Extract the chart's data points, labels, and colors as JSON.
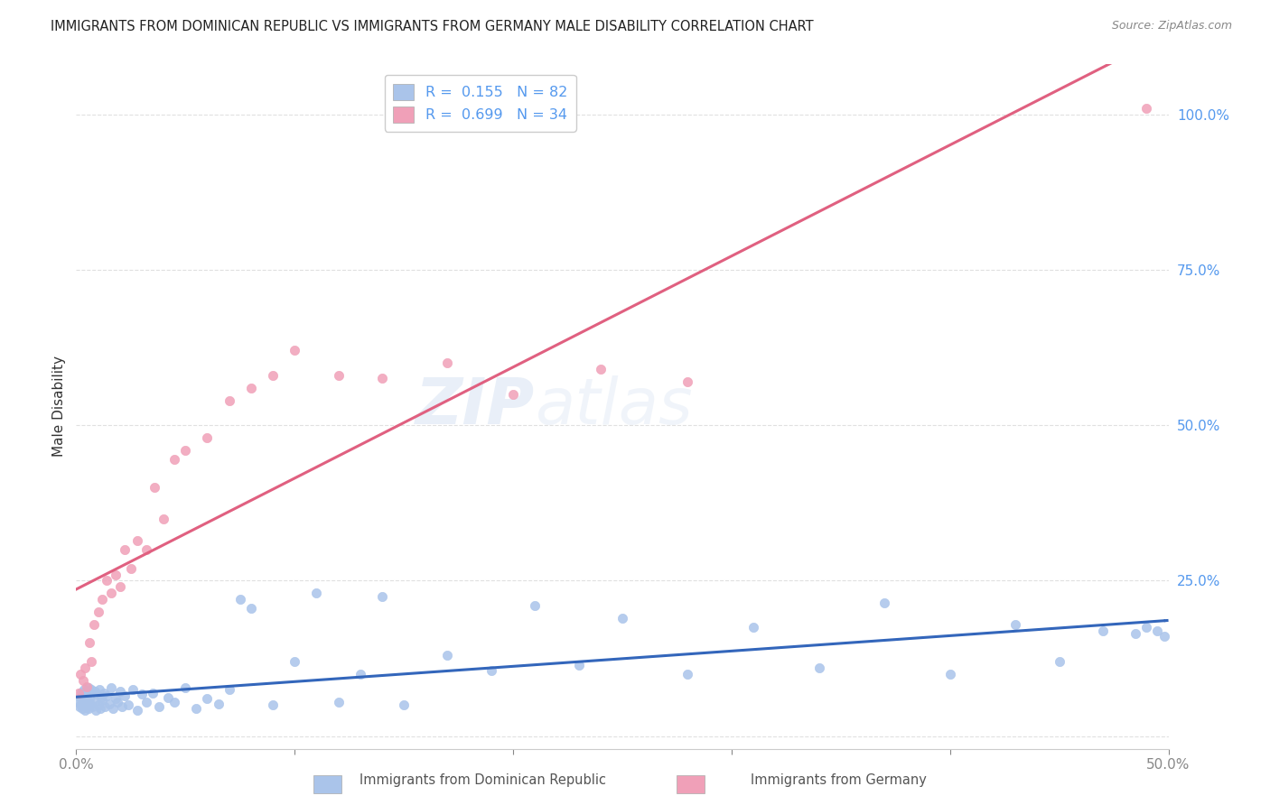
{
  "title": "IMMIGRANTS FROM DOMINICAN REPUBLIC VS IMMIGRANTS FROM GERMANY MALE DISABILITY CORRELATION CHART",
  "source": "Source: ZipAtlas.com",
  "ylabel": "Male Disability",
  "xmin": 0.0,
  "xmax": 50.0,
  "ymin": -2.0,
  "ymax": 108.0,
  "yticks": [
    0.0,
    25.0,
    50.0,
    75.0,
    100.0
  ],
  "ytick_labels": [
    "",
    "25.0%",
    "50.0%",
    "75.0%",
    "100.0%"
  ],
  "xticks": [
    0.0,
    10.0,
    20.0,
    30.0,
    40.0,
    50.0
  ],
  "xtick_labels": [
    "0.0%",
    "",
    "",
    "",
    "",
    "50.0%"
  ],
  "series1": {
    "label": "Immigrants from Dominican Republic",
    "R": 0.155,
    "N": 82,
    "color": "#aac4ea",
    "line_color": "#3366bb",
    "x": [
      0.1,
      0.15,
      0.2,
      0.2,
      0.25,
      0.28,
      0.3,
      0.32,
      0.35,
      0.38,
      0.4,
      0.42,
      0.45,
      0.48,
      0.5,
      0.52,
      0.55,
      0.58,
      0.6,
      0.65,
      0.7,
      0.75,
      0.8,
      0.85,
      0.9,
      0.95,
      1.0,
      1.05,
      1.1,
      1.15,
      1.2,
      1.25,
      1.3,
      1.4,
      1.5,
      1.6,
      1.7,
      1.8,
      1.9,
      2.0,
      2.1,
      2.2,
      2.4,
      2.6,
      2.8,
      3.0,
      3.2,
      3.5,
      3.8,
      4.2,
      4.5,
      5.0,
      5.5,
      6.0,
      6.5,
      7.0,
      7.5,
      8.0,
      9.0,
      10.0,
      11.0,
      12.0,
      13.0,
      14.0,
      15.0,
      17.0,
      19.0,
      21.0,
      23.0,
      25.0,
      28.0,
      31.0,
      34.0,
      37.0,
      40.0,
      43.0,
      45.0,
      47.0,
      48.5,
      49.0,
      49.5,
      49.8
    ],
    "y": [
      5.5,
      4.8,
      6.2,
      5.0,
      7.1,
      4.5,
      6.8,
      5.5,
      7.5,
      4.2,
      6.5,
      5.8,
      7.0,
      4.8,
      6.2,
      5.5,
      7.8,
      4.5,
      6.0,
      5.2,
      7.5,
      4.8,
      5.5,
      7.2,
      4.2,
      6.8,
      5.0,
      7.5,
      4.5,
      6.2,
      5.8,
      7.0,
      4.8,
      6.5,
      5.2,
      7.8,
      4.5,
      6.0,
      5.5,
      7.2,
      4.8,
      6.5,
      5.0,
      7.5,
      4.2,
      6.8,
      5.5,
      7.0,
      4.8,
      6.2,
      5.5,
      7.8,
      4.5,
      6.0,
      5.2,
      7.5,
      22.0,
      20.5,
      5.0,
      12.0,
      23.0,
      5.5,
      10.0,
      22.5,
      5.0,
      13.0,
      10.5,
      21.0,
      11.5,
      19.0,
      10.0,
      17.5,
      11.0,
      21.5,
      10.0,
      18.0,
      12.0,
      17.0,
      16.5,
      17.5,
      17.0,
      16.0
    ]
  },
  "series2": {
    "label": "Immigrants from Germany",
    "R": 0.699,
    "N": 34,
    "color": "#f0a0b8",
    "line_color": "#e06080",
    "x": [
      0.1,
      0.2,
      0.3,
      0.4,
      0.5,
      0.6,
      0.7,
      0.8,
      1.0,
      1.2,
      1.4,
      1.6,
      1.8,
      2.0,
      2.2,
      2.5,
      2.8,
      3.2,
      3.6,
      4.0,
      4.5,
      5.0,
      6.0,
      7.0,
      8.0,
      9.0,
      10.0,
      12.0,
      14.0,
      17.0,
      20.0,
      24.0,
      28.0,
      49.0
    ],
    "y": [
      7.0,
      10.0,
      9.0,
      11.0,
      8.0,
      15.0,
      12.0,
      18.0,
      20.0,
      22.0,
      25.0,
      23.0,
      26.0,
      24.0,
      30.0,
      27.0,
      31.5,
      30.0,
      40.0,
      35.0,
      44.5,
      46.0,
      48.0,
      54.0,
      56.0,
      58.0,
      62.0,
      58.0,
      57.5,
      60.0,
      55.0,
      59.0,
      57.0,
      101.0
    ]
  },
  "watermark": "ZIPatlas",
  "background_color": "#ffffff",
  "grid_color": "#dddddd"
}
